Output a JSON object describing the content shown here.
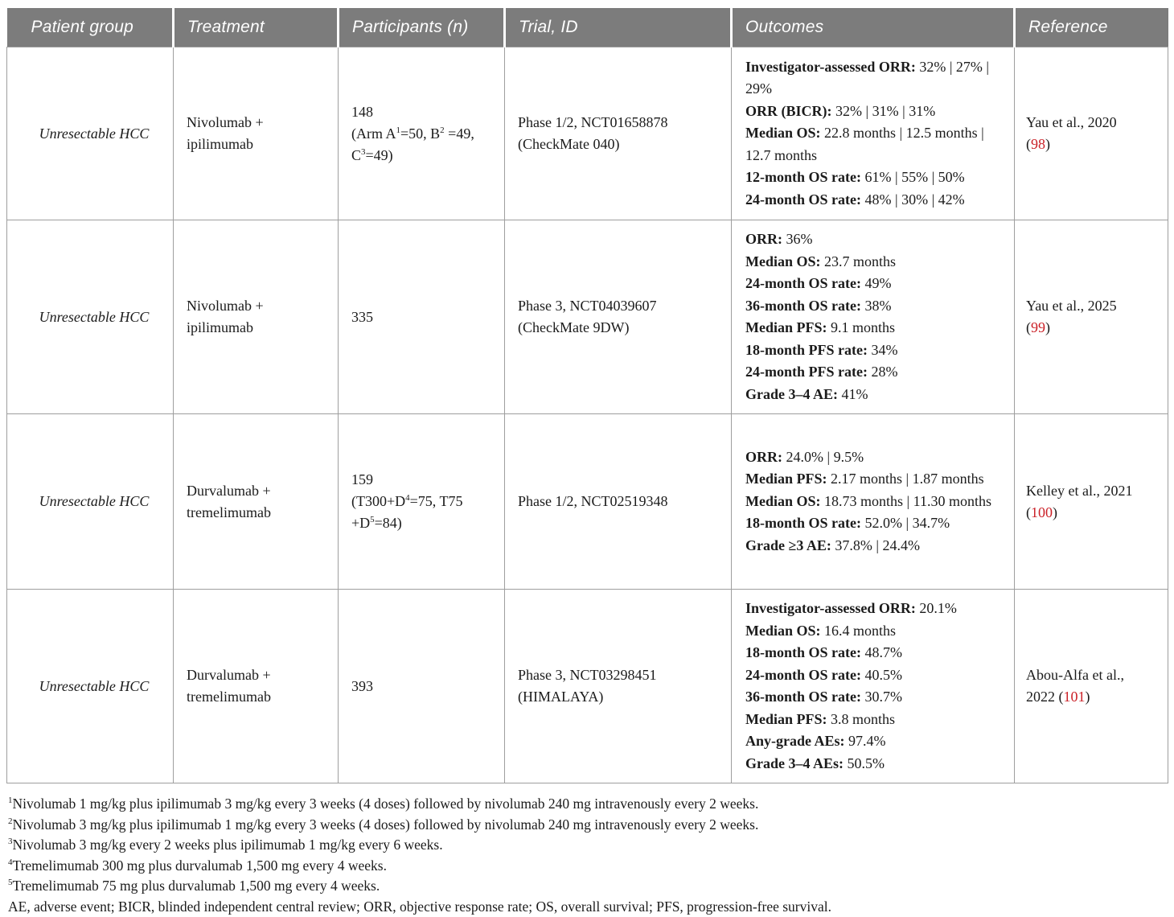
{
  "colors": {
    "header_bg": "#7c7c7c",
    "header_text": "#ffffff",
    "border": "#9e9e9e",
    "body_text": "#1b1b1b",
    "reference_red": "#cb2128"
  },
  "header": {
    "labels": [
      "Patient group",
      "Treatment",
      "Participants (n)",
      "Trial, ID",
      "Outcomes",
      "Reference"
    ]
  },
  "rows": [
    {
      "patient_group": "Unresectable HCC",
      "treatment_lines": [
        "Nivolumab +",
        "ipilimumab"
      ],
      "participants_lines": [
        "148",
        "(Arm A^1=50, B^2 =49,",
        "C^3=49)"
      ],
      "trial_lines": [
        "Phase 1/2, NCT01658878",
        "(CheckMate 040)"
      ],
      "outcomes": [
        {
          "label": "Investigator-assessed ORR:",
          "value": "32% | 27% | 29%"
        },
        {
          "label": "ORR (BICR):",
          "value": "32% | 31% | 31%"
        },
        {
          "label": "Median OS:",
          "value": "22.8 months | 12.5 months | 12.7 months"
        },
        {
          "label": "12-month OS rate:",
          "value": "61% | 55% | 50%"
        },
        {
          "label": "24-month OS rate:",
          "value": "48% | 30% | 42%"
        }
      ],
      "reference_lines": [
        "Yau et al., 2020",
        "([[98]])"
      ]
    },
    {
      "patient_group": "Unresectable HCC",
      "treatment_lines": [
        "Nivolumab +",
        "ipilimumab"
      ],
      "participants_lines": [
        "335"
      ],
      "trial_lines": [
        "Phase 3, NCT04039607",
        "(CheckMate 9DW)"
      ],
      "outcomes": [
        {
          "label": "ORR:",
          "value": "36%"
        },
        {
          "label": "Median OS:",
          "value": "23.7 months"
        },
        {
          "label": "24-month OS rate:",
          "value": "49%"
        },
        {
          "label": "36-month OS rate:",
          "value": "38%"
        },
        {
          "label": "Median PFS:",
          "value": "9.1 months"
        },
        {
          "label": "18-month PFS rate:",
          "value": "34%"
        },
        {
          "label": "24-month PFS rate:",
          "value": "28%"
        },
        {
          "label": "Grade 3–4 AE:",
          "value": "41%"
        }
      ],
      "reference_lines": [
        "Yau et al., 2025",
        "([[99]])"
      ]
    },
    {
      "patient_group": "Unresectable HCC",
      "treatment_lines": [
        "Durvalumab +",
        "tremelimumab"
      ],
      "participants_lines": [
        "159",
        "(T300+D^4=75, T75",
        "+D^5=84)"
      ],
      "trial_lines": [
        "Phase 1/2, NCT02519348"
      ],
      "outcomes": [
        {
          "label": "ORR:",
          "value": "24.0% | 9.5%"
        },
        {
          "label": "Median PFS:",
          "value": "2.17 months | 1.87 months"
        },
        {
          "label": "Median OS:",
          "value": "18.73 months | 11.30 months"
        },
        {
          "label": "18-month OS rate:",
          "value": "52.0% | 34.7%"
        },
        {
          "label": "Grade ≥3 AE:",
          "value": "37.8% | 24.4%"
        }
      ],
      "reference_lines": [
        "Kelley et al., 2021",
        "([[100]])"
      ]
    },
    {
      "patient_group": "Unresectable HCC",
      "treatment_lines": [
        "Durvalumab +",
        "tremelimumab"
      ],
      "participants_lines": [
        "393"
      ],
      "trial_lines": [
        "Phase 3, NCT03298451",
        "(HIMALAYA)"
      ],
      "outcomes": [
        {
          "label": "Investigator-assessed ORR:",
          "value": "20.1%"
        },
        {
          "label": "Median OS:",
          "value": "16.4 months"
        },
        {
          "label": "18-month OS rate:",
          "value": "48.7%"
        },
        {
          "label": "24-month OS rate:",
          "value": "40.5%"
        },
        {
          "label": "36-month OS rate:",
          "value": "30.7%"
        },
        {
          "label": "Median PFS:",
          "value": "3.8 months"
        },
        {
          "label": "Any-grade AEs:",
          "value": "97.4%"
        },
        {
          "label": "Grade 3–4 AEs:",
          "value": "50.5%"
        }
      ],
      "reference_lines": [
        "Abou-Alfa et al.,",
        "2022 ([[101]])"
      ]
    }
  ],
  "footnotes": [
    {
      "sup": "1",
      "text": "Nivolumab 1 mg/kg plus ipilimumab 3 mg/kg every 3 weeks (4 doses) followed by nivolumab 240 mg intravenously every 2 weeks."
    },
    {
      "sup": "2",
      "text": "Nivolumab 3 mg/kg plus ipilimumab 1 mg/kg every 3 weeks (4 doses) followed by nivolumab 240 mg intravenously every 2 weeks."
    },
    {
      "sup": "3",
      "text": "Nivolumab 3 mg/kg every 2 weeks plus ipilimumab 1 mg/kg every 6 weeks."
    },
    {
      "sup": "4",
      "text": "Tremelimumab 300 mg plus durvalumab 1,500 mg every 4 weeks."
    },
    {
      "sup": "5",
      "text": "Tremelimumab 75 mg plus durvalumab 1,500 mg every 4 weeks."
    }
  ],
  "abbreviations": "AE, adverse event; BICR, blinded independent central review; ORR, objective response rate; OS, overall survival; PFS, progression-free survival."
}
